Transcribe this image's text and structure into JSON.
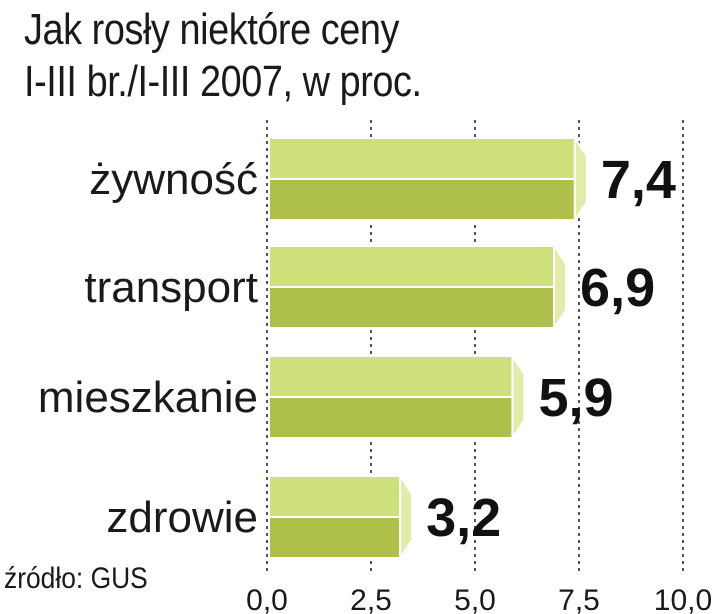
{
  "source": "źródło: GUS",
  "chart_data": {
    "type": "bar",
    "orientation": "horizontal",
    "title": [
      "Jak rosły niektóre ceny",
      "I-III br./I-III 2007, w proc."
    ],
    "categories": [
      "żywność",
      "transport",
      "mieszkanie",
      "zdrowie"
    ],
    "values": [
      7.4,
      6.9,
      5.9,
      3.2
    ],
    "value_labels": [
      "7,4",
      "6,9",
      "5,9",
      "3,2"
    ],
    "xlim": [
      0,
      10
    ],
    "x_ticks": [
      0,
      2.5,
      5,
      7.5,
      10
    ],
    "x_tick_labels": [
      "0,0",
      "2,5",
      "5,0",
      "7,5",
      "10,0"
    ],
    "grid": true,
    "colors": {
      "bar_top": "#cde07a",
      "bar_bottom": "#aebf4a",
      "bar_end": "#e2ecaa",
      "bar_edge": "#ffffff",
      "grid": "#555555"
    }
  }
}
